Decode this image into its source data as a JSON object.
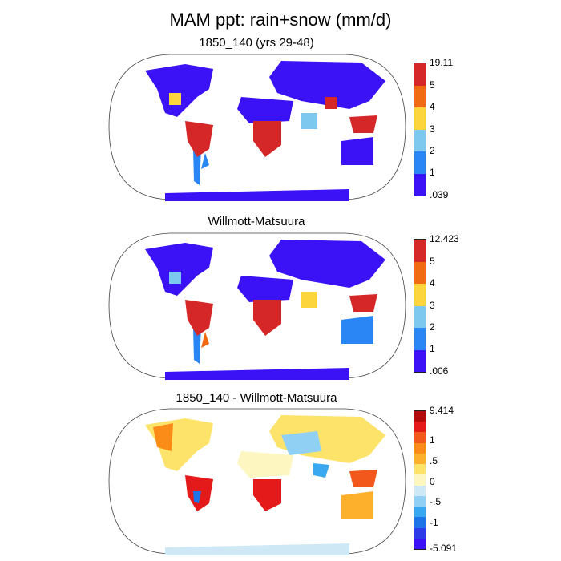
{
  "figure": {
    "title": "MAM ppt: rain+snow (mm/d)"
  },
  "panels": [
    {
      "title": "1850_140 (yrs 29-48)",
      "colorbar": {
        "labels": [
          "19.11",
          "5",
          "4",
          "3",
          "2",
          "1",
          ".039"
        ],
        "colors": [
          "#d62728",
          "#f06a14",
          "#fcd43b",
          "#7cc8ef",
          "#2a86f5",
          "#3a12f5"
        ]
      }
    },
    {
      "title": "Willmott-Matsuura",
      "colorbar": {
        "labels": [
          "12.423",
          "5",
          "4",
          "3",
          "2",
          "1",
          ".006"
        ],
        "colors": [
          "#d62728",
          "#f06a14",
          "#fcd43b",
          "#7cc8ef",
          "#2a86f5",
          "#3a12f5"
        ]
      }
    },
    {
      "title": "1850_140 - Willmott-Matsuura",
      "colorbar": {
        "labels": [
          "9.414",
          "1",
          ".5",
          "0",
          "-.5",
          "-1",
          "-5.091"
        ],
        "colors": [
          "#b10b0b",
          "#e41a1a",
          "#f2571c",
          "#fb8c18",
          "#fdb02c",
          "#fde36a",
          "#fef6c0",
          "#cfe8f6",
          "#8fd0f4",
          "#3aa8f0",
          "#1d74e8",
          "#2c3ae8",
          "#3a12f5"
        ]
      }
    }
  ]
}
